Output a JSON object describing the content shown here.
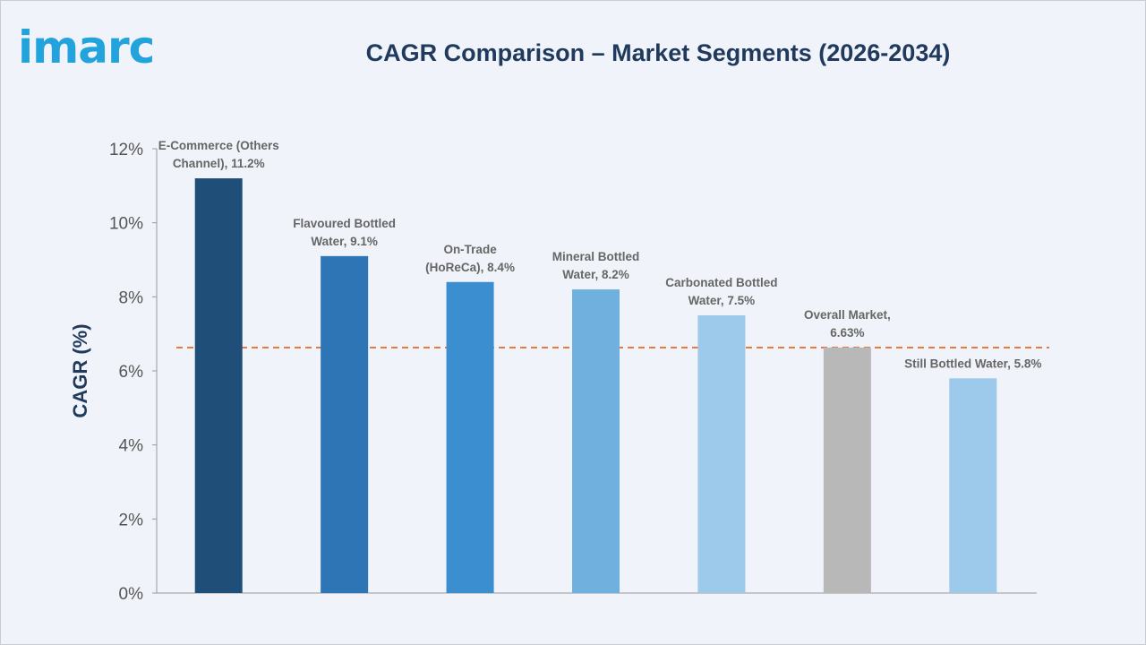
{
  "logo_text": "imarc",
  "title": "CAGR Comparison – Market Segments (2026-2034)",
  "chart_data": {
    "type": "bar",
    "title": "CAGR Comparison – Market Segments (2026-2034)",
    "xlabel": "",
    "ylabel": "CAGR (%)",
    "ylim": [
      0,
      12
    ],
    "yticks": [
      "0%",
      "2%",
      "4%",
      "6%",
      "8%",
      "10%",
      "12%"
    ],
    "grid": false,
    "reference_line": {
      "value": 6.63,
      "style": "dashed",
      "color": "#e87a3e"
    },
    "bars": [
      {
        "label": [
          "E-Commerce (Others",
          "Channel), 11.2%"
        ],
        "value": 11.2,
        "color": "#1f4e79"
      },
      {
        "label": [
          "Flavoured Bottled",
          "Water, 9.1%"
        ],
        "value": 9.1,
        "color": "#2e75b6"
      },
      {
        "label": [
          "On-Trade",
          "(HoReCa), 8.4%"
        ],
        "value": 8.4,
        "color": "#3b8fd0"
      },
      {
        "label": [
          "Mineral Bottled",
          "Water, 8.2%"
        ],
        "value": 8.2,
        "color": "#6fb0de"
      },
      {
        "label": [
          "Carbonated Bottled",
          "Water, 7.5%"
        ],
        "value": 7.5,
        "color": "#9dcaea"
      },
      {
        "label": [
          "Overall Market,",
          "6.63%"
        ],
        "value": 6.63,
        "color": "#b8b8b8"
      },
      {
        "label": [
          "Still Bottled Water, 5.8%"
        ],
        "value": 5.8,
        "color": "#9dcaea"
      }
    ]
  }
}
